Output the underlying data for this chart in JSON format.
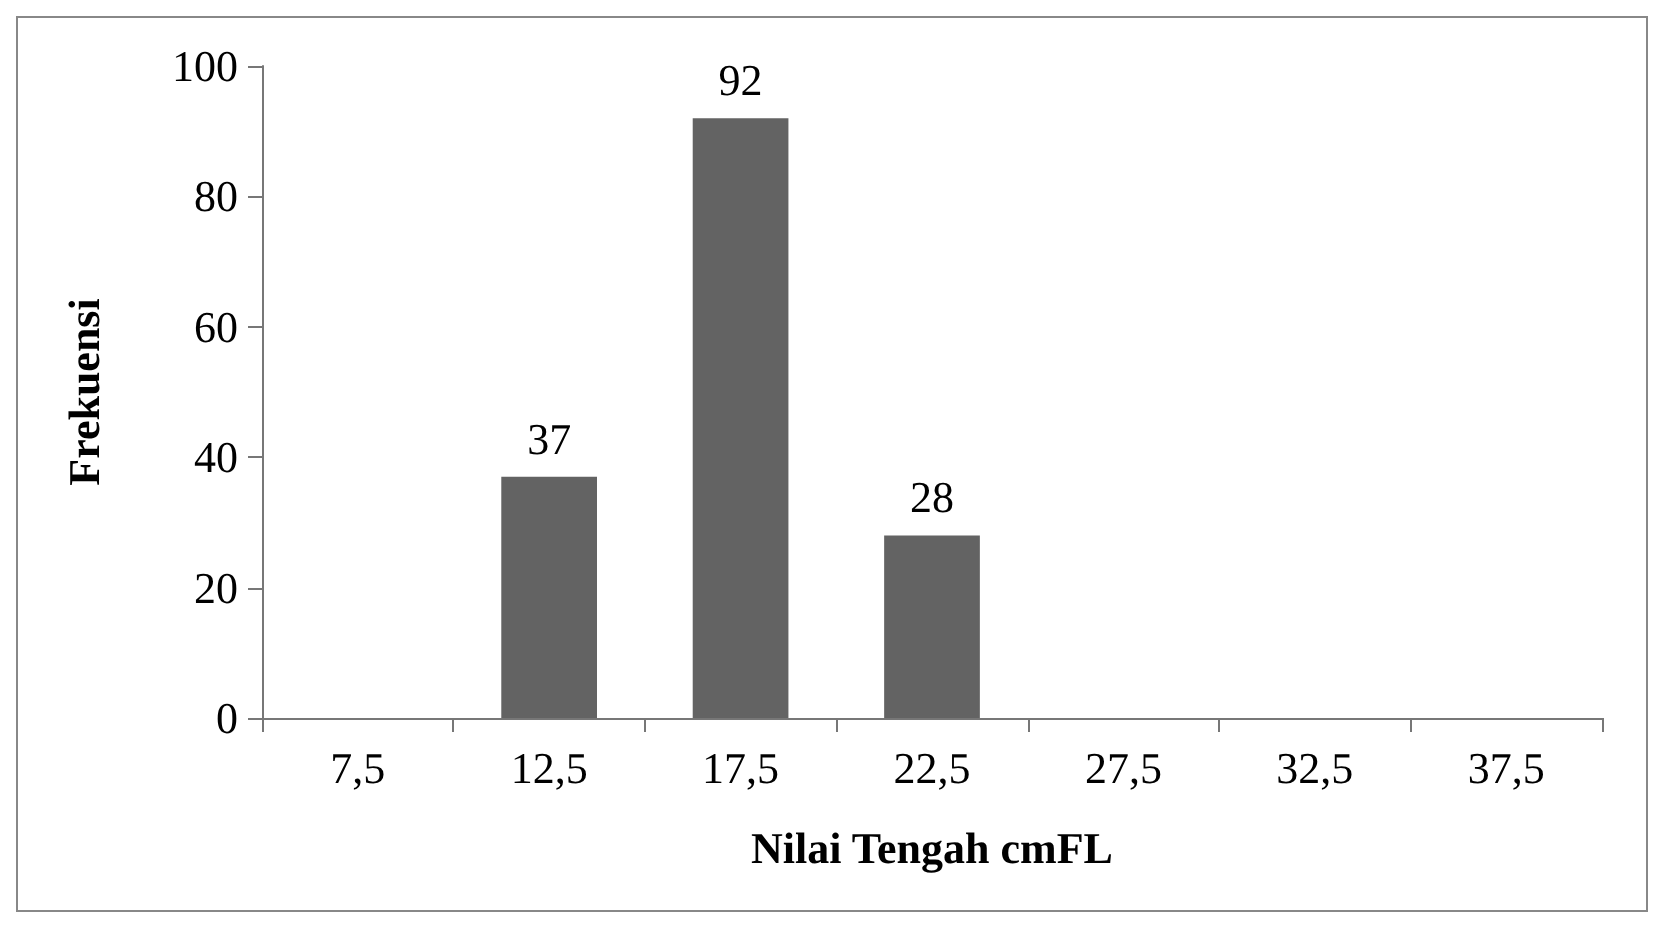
{
  "chart_data": {
    "type": "bar",
    "xlabel": "Nilai Tengah cmFL",
    "ylabel": "Frekuensi",
    "categories": [
      "7,5",
      "12,5",
      "17,5",
      "22,5",
      "27,5",
      "32,5",
      "37,5"
    ],
    "values": [
      0,
      37,
      92,
      28,
      0,
      0,
      0
    ],
    "value_labels": [
      null,
      "37",
      "92",
      "28",
      null,
      null,
      null
    ],
    "color": "#636363",
    "ylim": [
      0,
      100
    ],
    "yticks": [
      0,
      20,
      40,
      60,
      80,
      100
    ],
    "grid": false
  }
}
